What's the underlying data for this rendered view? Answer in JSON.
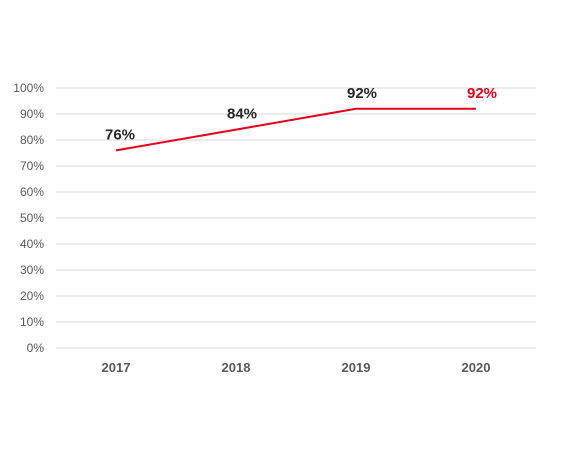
{
  "chart_data": {
    "type": "line",
    "categories": [
      "2017",
      "2018",
      "2019",
      "2020"
    ],
    "series": [
      {
        "values": [
          76,
          84,
          92,
          92
        ]
      }
    ],
    "data_labels": [
      "76%",
      "84%",
      "92%",
      "92%"
    ],
    "y_ticks": [
      "0%",
      "10%",
      "20%",
      "30%",
      "40%",
      "50%",
      "60%",
      "70%",
      "80%",
      "90%",
      "100%"
    ],
    "ylim": [
      0,
      100
    ],
    "grid": true,
    "legend": "none",
    "colors": {
      "line": "#e3001b",
      "label_default": "#262626",
      "label_highlight": "#e3001b"
    },
    "highlight_index": 3
  }
}
